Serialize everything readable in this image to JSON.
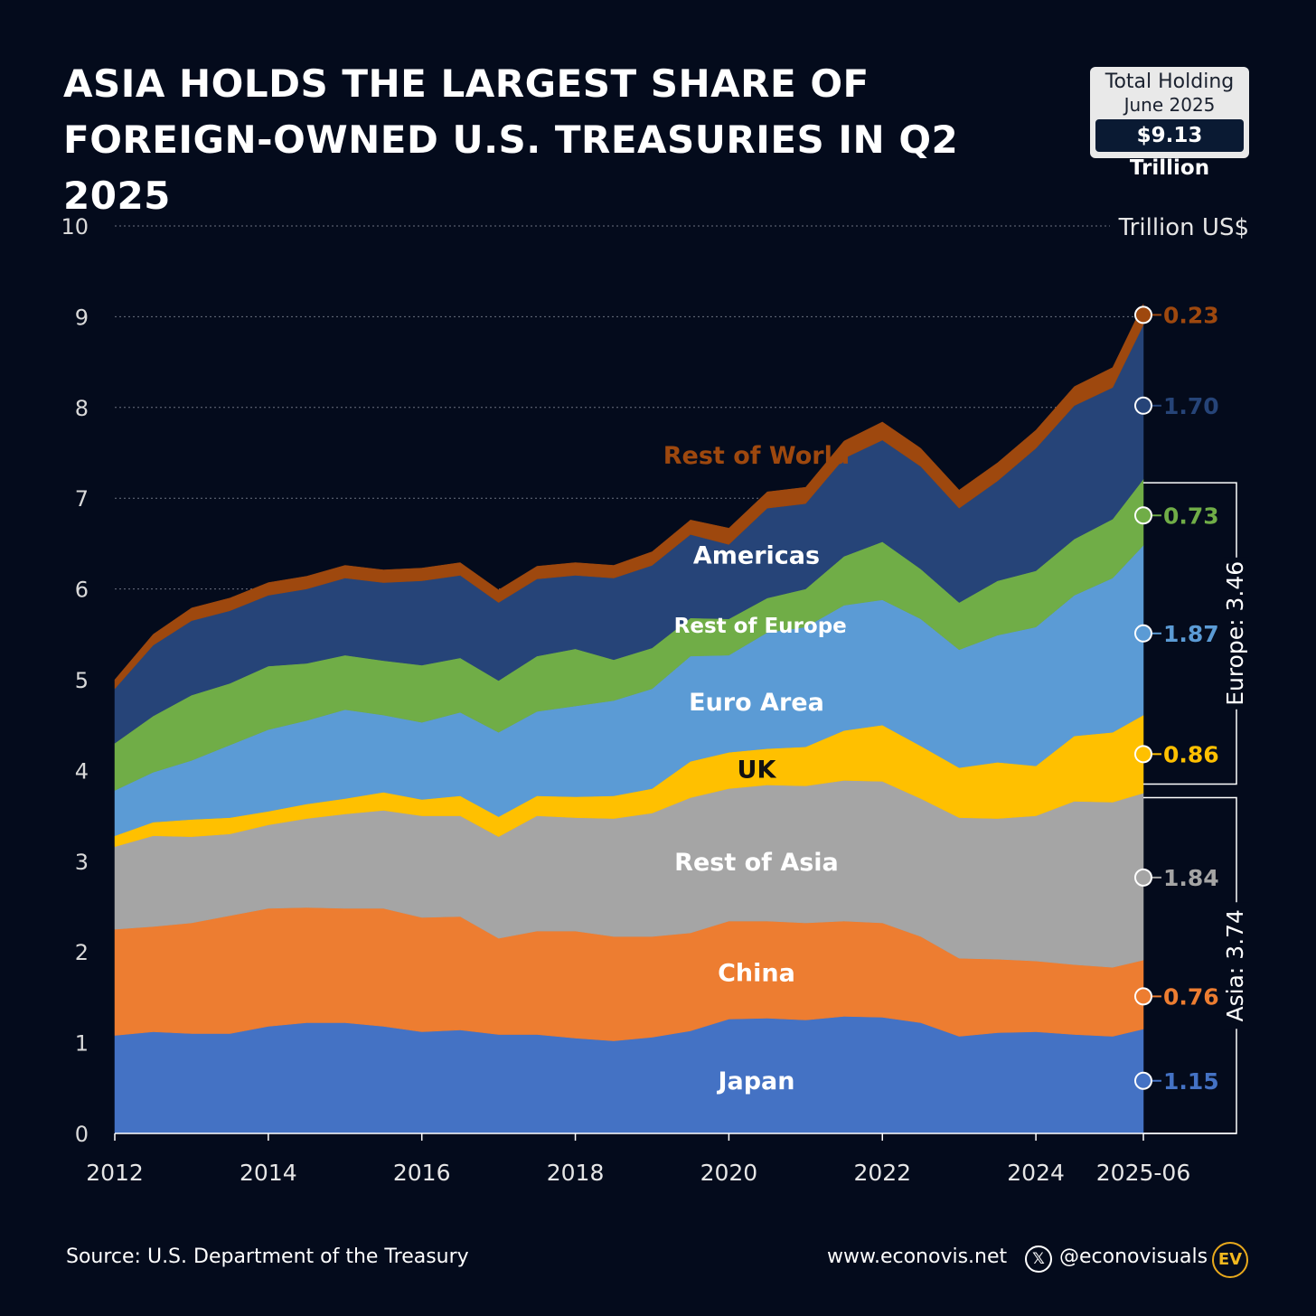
{
  "title": {
    "line1": "ASIA HOLDS THE LARGEST SHARE OF",
    "line2": "FOREIGN-OWNED U.S. TREASURIES IN Q2 2025"
  },
  "total_holding": {
    "label": "Total Holding",
    "date": "June 2025",
    "value": "$9.13 Trillion"
  },
  "footer": {
    "source": "Source: U.S. Department of the Treasury",
    "website": "www.econovis.net",
    "x_icon": "x-logo-icon",
    "handle": "@econovisuals",
    "logo_text": "EV"
  },
  "colors": {
    "background": "#040b1c",
    "Japan": "#4472c4",
    "China": "#ed7d31",
    "Rest of Asia": "#a5a5a5",
    "UK": "#ffc000",
    "Euro Area": "#5b9bd5",
    "Rest of Europe": "#70ad47",
    "Americas": "#264478",
    "Rest of World": "#9e480e"
  },
  "chart_data": {
    "type": "area",
    "stacked": true,
    "title": "ASIA HOLDS THE LARGEST SHARE OF FOREIGN-OWNED U.S. TREASURIES IN Q2 2025",
    "ylabel": "Trillion US$",
    "ylim": [
      0,
      10
    ],
    "yticks": [
      0,
      1,
      2,
      3,
      4,
      5,
      6,
      7,
      8,
      9,
      10
    ],
    "xticks": [
      "2012",
      "2014",
      "2016",
      "2018",
      "2020",
      "2022",
      "2024",
      "2025-06"
    ],
    "x": [
      2012.0,
      2012.5,
      2013.0,
      2013.5,
      2014.0,
      2014.5,
      2015.0,
      2015.5,
      2016.0,
      2016.5,
      2017.0,
      2017.5,
      2018.0,
      2018.5,
      2019.0,
      2019.5,
      2020.0,
      2020.5,
      2021.0,
      2021.5,
      2022.0,
      2022.5,
      2023.0,
      2023.5,
      2024.0,
      2024.5,
      2025.0,
      2025.46
    ],
    "grid": "dotted horizontal",
    "series": [
      {
        "name": "Japan",
        "label_value": "1.15",
        "values": [
          1.08,
          1.12,
          1.1,
          1.1,
          1.18,
          1.22,
          1.22,
          1.18,
          1.12,
          1.14,
          1.09,
          1.09,
          1.05,
          1.02,
          1.06,
          1.13,
          1.26,
          1.27,
          1.25,
          1.29,
          1.28,
          1.22,
          1.07,
          1.11,
          1.12,
          1.09,
          1.07,
          1.15
        ]
      },
      {
        "name": "China",
        "label_value": "0.76",
        "values": [
          1.17,
          1.16,
          1.22,
          1.3,
          1.3,
          1.27,
          1.26,
          1.3,
          1.26,
          1.25,
          1.06,
          1.14,
          1.18,
          1.15,
          1.11,
          1.08,
          1.08,
          1.07,
          1.07,
          1.05,
          1.04,
          0.95,
          0.86,
          0.81,
          0.78,
          0.77,
          0.76,
          0.76
        ]
      },
      {
        "name": "Rest of Asia",
        "label_value": "1.84",
        "values": [
          0.91,
          1.0,
          0.95,
          0.9,
          0.92,
          0.98,
          1.04,
          1.08,
          1.12,
          1.11,
          1.12,
          1.27,
          1.25,
          1.3,
          1.36,
          1.49,
          1.46,
          1.5,
          1.51,
          1.55,
          1.56,
          1.52,
          1.55,
          1.55,
          1.6,
          1.8,
          1.82,
          1.84
        ]
      },
      {
        "name": "UK",
        "label_value": "0.86",
        "values": [
          0.12,
          0.15,
          0.19,
          0.18,
          0.15,
          0.16,
          0.17,
          0.2,
          0.18,
          0.22,
          0.22,
          0.22,
          0.23,
          0.25,
          0.27,
          0.4,
          0.4,
          0.4,
          0.43,
          0.55,
          0.62,
          0.58,
          0.55,
          0.62,
          0.55,
          0.72,
          0.77,
          0.86
        ]
      },
      {
        "name": "Euro Area",
        "label_value": "1.87",
        "values": [
          0.5,
          0.55,
          0.65,
          0.8,
          0.9,
          0.92,
          0.98,
          0.85,
          0.85,
          0.92,
          0.93,
          0.93,
          1.0,
          1.05,
          1.1,
          1.16,
          1.07,
          1.28,
          1.32,
          1.38,
          1.38,
          1.4,
          1.3,
          1.4,
          1.53,
          1.55,
          1.7,
          1.87
        ]
      },
      {
        "name": "Rest of Europe",
        "label_value": "0.73",
        "values": [
          0.52,
          0.62,
          0.72,
          0.68,
          0.7,
          0.63,
          0.6,
          0.6,
          0.63,
          0.6,
          0.57,
          0.61,
          0.63,
          0.45,
          0.45,
          0.42,
          0.4,
          0.38,
          0.42,
          0.54,
          0.64,
          0.55,
          0.52,
          0.6,
          0.62,
          0.62,
          0.65,
          0.73
        ]
      },
      {
        "name": "Americas",
        "label_value": "1.70",
        "values": [
          0.6,
          0.78,
          0.82,
          0.8,
          0.78,
          0.82,
          0.85,
          0.86,
          0.93,
          0.91,
          0.86,
          0.85,
          0.81,
          0.9,
          0.91,
          0.92,
          0.82,
          0.99,
          0.94,
          1.08,
          1.12,
          1.13,
          1.04,
          1.1,
          1.35,
          1.47,
          1.45,
          1.7
        ]
      },
      {
        "name": "Rest of World",
        "label_value": "0.23",
        "values": [
          0.1,
          0.12,
          0.14,
          0.14,
          0.14,
          0.14,
          0.14,
          0.14,
          0.14,
          0.14,
          0.14,
          0.14,
          0.14,
          0.14,
          0.15,
          0.16,
          0.18,
          0.18,
          0.18,
          0.19,
          0.2,
          0.2,
          0.2,
          0.2,
          0.2,
          0.21,
          0.22,
          0.23
        ]
      }
    ],
    "series_labels": [
      {
        "text": "Japan",
        "series": "Japan",
        "at_x": 2020.36,
        "at_y": 0.58
      },
      {
        "text": "China",
        "series": "China",
        "at_x": 2020.36,
        "at_y": 1.77
      },
      {
        "text": "Rest of Asia",
        "series": "Rest of Asia",
        "at_x": 2020.36,
        "at_y": 2.99
      },
      {
        "text": "UK",
        "series": "UK",
        "at_x": 2020.36,
        "at_y": 4.01
      },
      {
        "text": "Euro Area",
        "series": "Euro Area",
        "at_x": 2020.36,
        "at_y": 4.75
      },
      {
        "text": "Rest of Europe",
        "series": "Rest of Europe",
        "at_x": 2020.41,
        "at_y": 5.61
      },
      {
        "text": "Americas",
        "series": "Americas",
        "at_x": 2020.36,
        "at_y": 6.37
      },
      {
        "text": "Rest of World",
        "series": "Rest of World",
        "at_x": 2020.36,
        "at_y": 7.47
      }
    ],
    "end_markers": [
      {
        "series": "Rest of World",
        "text": "0.23",
        "at_y": 9.02
      },
      {
        "series": "Americas",
        "text": "1.70",
        "at_y": 8.02
      },
      {
        "series": "Rest of Europe",
        "text": "0.73",
        "at_y": 6.81
      },
      {
        "series": "Euro Area",
        "text": "1.87",
        "at_y": 5.51
      },
      {
        "series": "UK",
        "text": "0.86",
        "at_y": 4.18
      },
      {
        "series": "Rest of Asia",
        "text": "1.84",
        "at_y": 2.82
      },
      {
        "series": "China",
        "text": "0.76",
        "at_y": 1.51
      },
      {
        "series": "Japan",
        "text": "1.15",
        "at_y": 0.58
      }
    ],
    "brackets": [
      {
        "label": "Europe: 3.46",
        "from": 3.85,
        "to": 7.17
      },
      {
        "label": "Asia: 3.74",
        "from": 0.0,
        "to": 3.7
      }
    ]
  }
}
